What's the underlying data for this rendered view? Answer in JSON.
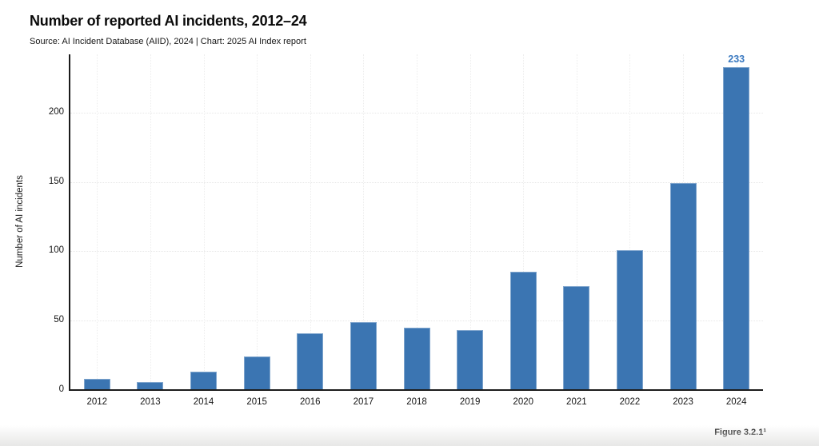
{
  "header": {
    "title": "Number of reported AI incidents, 2012–24",
    "subtitle": "Source: AI Incident Database (AIID), 2024 | Chart: 2025 AI Index report"
  },
  "figure_caption": "Figure 3.2.1¹",
  "chart_data": {
    "type": "bar",
    "title": "Number of reported AI incidents, 2012–24",
    "source_line": "Source: AI Incident Database (AIID), 2024 | Chart: 2025 AI Index report",
    "categories": [
      "2012",
      "2013",
      "2014",
      "2015",
      "2016",
      "2017",
      "2018",
      "2019",
      "2020",
      "2021",
      "2022",
      "2023",
      "2024"
    ],
    "values": [
      8,
      6,
      13,
      24,
      41,
      49,
      45,
      43,
      85,
      75,
      101,
      149,
      233
    ],
    "xlabel": "",
    "ylabel": "Number of AI incidents",
    "ylim": [
      0,
      242
    ],
    "yticks": [
      0,
      50,
      100,
      150,
      200
    ],
    "grid": "faint dotted horizontal and vertical gridlines",
    "legend": "none",
    "bar_color": "#3b75b2",
    "annotations": [
      {
        "category": "2024",
        "text": "233",
        "color": "#3b7ac1"
      }
    ]
  }
}
